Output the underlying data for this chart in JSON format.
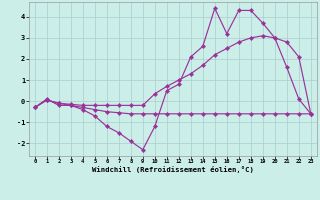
{
  "xlabel": "Windchill (Refroidissement éolien,°C)",
  "bg_color": "#cceee8",
  "grid_color": "#aacccc",
  "line_color": "#993399",
  "line1_x": [
    0,
    1,
    2,
    3,
    4,
    5,
    6,
    7,
    8,
    9,
    10,
    11,
    12,
    13,
    14,
    15,
    16,
    17,
    18,
    19,
    20,
    21,
    22,
    23
  ],
  "line1_y": [
    -0.3,
    0.1,
    -0.2,
    -0.2,
    -0.4,
    -0.7,
    -1.2,
    -1.5,
    -1.9,
    -2.3,
    -1.2,
    0.5,
    0.8,
    2.1,
    2.6,
    4.4,
    3.2,
    4.3,
    4.3,
    3.7,
    3.0,
    1.6,
    0.1,
    -0.6
  ],
  "line2_x": [
    0,
    1,
    2,
    3,
    4,
    5,
    6,
    7,
    8,
    9,
    10,
    11,
    12,
    13,
    14,
    15,
    16,
    17,
    18,
    19,
    20,
    21,
    22,
    23
  ],
  "line2_y": [
    -0.3,
    0.05,
    -0.1,
    -0.2,
    -0.3,
    -0.4,
    -0.5,
    -0.55,
    -0.6,
    -0.6,
    -0.6,
    -0.6,
    -0.6,
    -0.6,
    -0.6,
    -0.6,
    -0.6,
    -0.6,
    -0.6,
    -0.6,
    -0.6,
    -0.6,
    -0.6,
    -0.6
  ],
  "line3_x": [
    0,
    1,
    2,
    3,
    4,
    5,
    6,
    7,
    8,
    9,
    10,
    11,
    12,
    13,
    14,
    15,
    16,
    17,
    18,
    19,
    20,
    21,
    22,
    23
  ],
  "line3_y": [
    -0.3,
    0.05,
    -0.1,
    -0.15,
    -0.2,
    -0.2,
    -0.2,
    -0.2,
    -0.2,
    -0.2,
    0.35,
    0.7,
    1.0,
    1.3,
    1.7,
    2.2,
    2.5,
    2.8,
    3.0,
    3.1,
    3.0,
    2.8,
    2.1,
    -0.6
  ],
  "xlim": [
    -0.5,
    23.5
  ],
  "ylim": [
    -2.6,
    4.7
  ],
  "xticks": [
    0,
    1,
    2,
    3,
    4,
    5,
    6,
    7,
    8,
    9,
    10,
    11,
    12,
    13,
    14,
    15,
    16,
    17,
    18,
    19,
    20,
    21,
    22,
    23
  ],
  "yticks": [
    -2,
    -1,
    0,
    1,
    2,
    3,
    4
  ]
}
